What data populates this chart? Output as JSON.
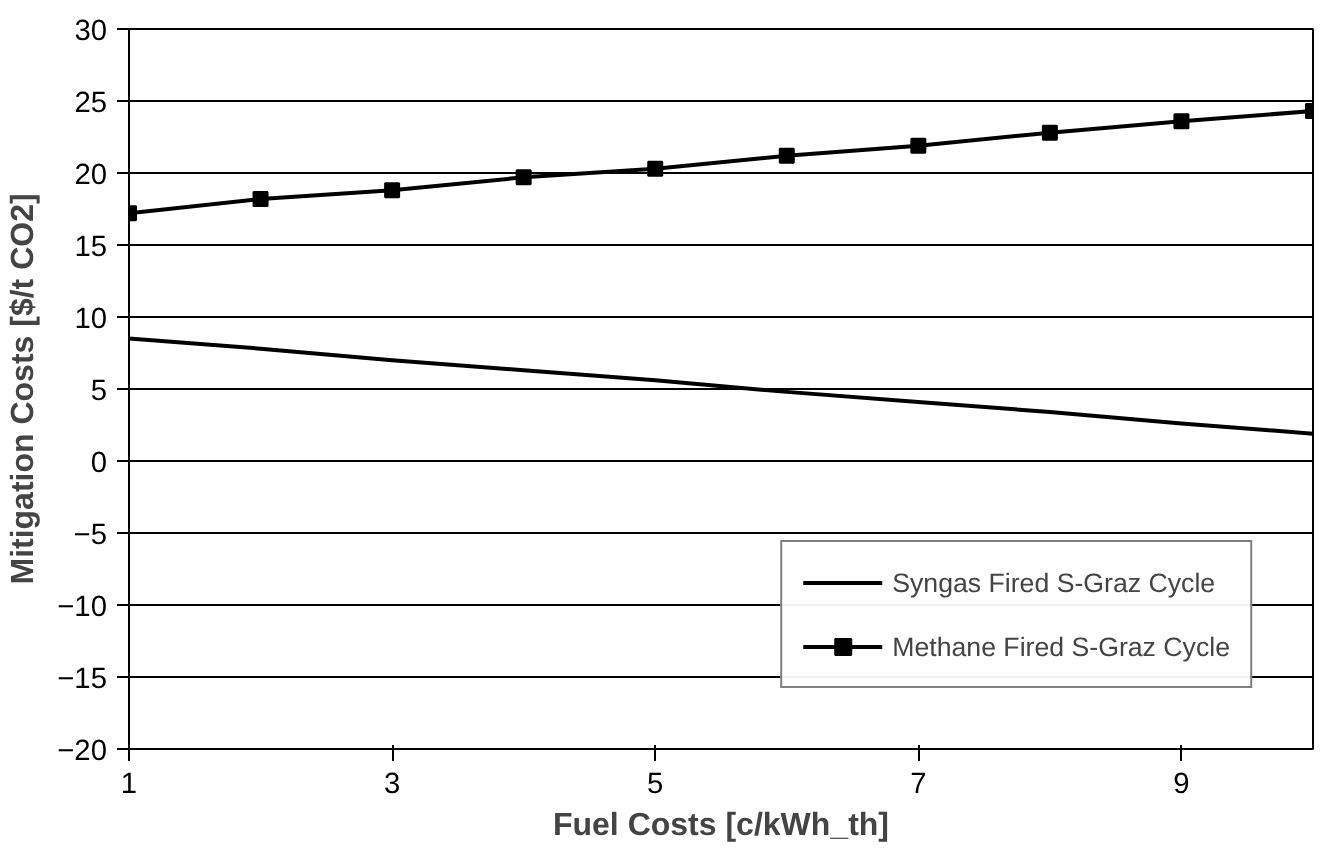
{
  "chart_data": {
    "type": "line",
    "xlabel": "Fuel Costs [c/kWh_th]",
    "ylabel": "Mitigation Costs [$/t CO2]",
    "x": [
      1,
      2,
      3,
      4,
      5,
      6,
      7,
      8,
      9,
      10
    ],
    "series": [
      {
        "name": "Syngas Fired S-Graz Cycle",
        "color": "#000000",
        "marker": "none",
        "values": [
          8.5,
          7.8,
          7.0,
          6.3,
          5.6,
          4.8,
          4.1,
          3.4,
          2.6,
          1.9
        ]
      },
      {
        "name": "Methane Fired S-Graz Cycle",
        "color": "#000000",
        "marker": "square",
        "values": [
          17.2,
          18.2,
          18.8,
          19.7,
          20.3,
          21.2,
          21.9,
          22.8,
          23.6,
          24.3
        ]
      }
    ],
    "xlim": [
      1,
      10
    ],
    "xticks": [
      1,
      3,
      5,
      7,
      9
    ],
    "ylim": [
      -20,
      30
    ],
    "yticks": [
      -20,
      -15,
      -10,
      -5,
      0,
      5,
      10,
      15,
      20,
      25,
      30
    ],
    "grid": "y",
    "legend": "bottom right",
    "line_style": "solid"
  }
}
